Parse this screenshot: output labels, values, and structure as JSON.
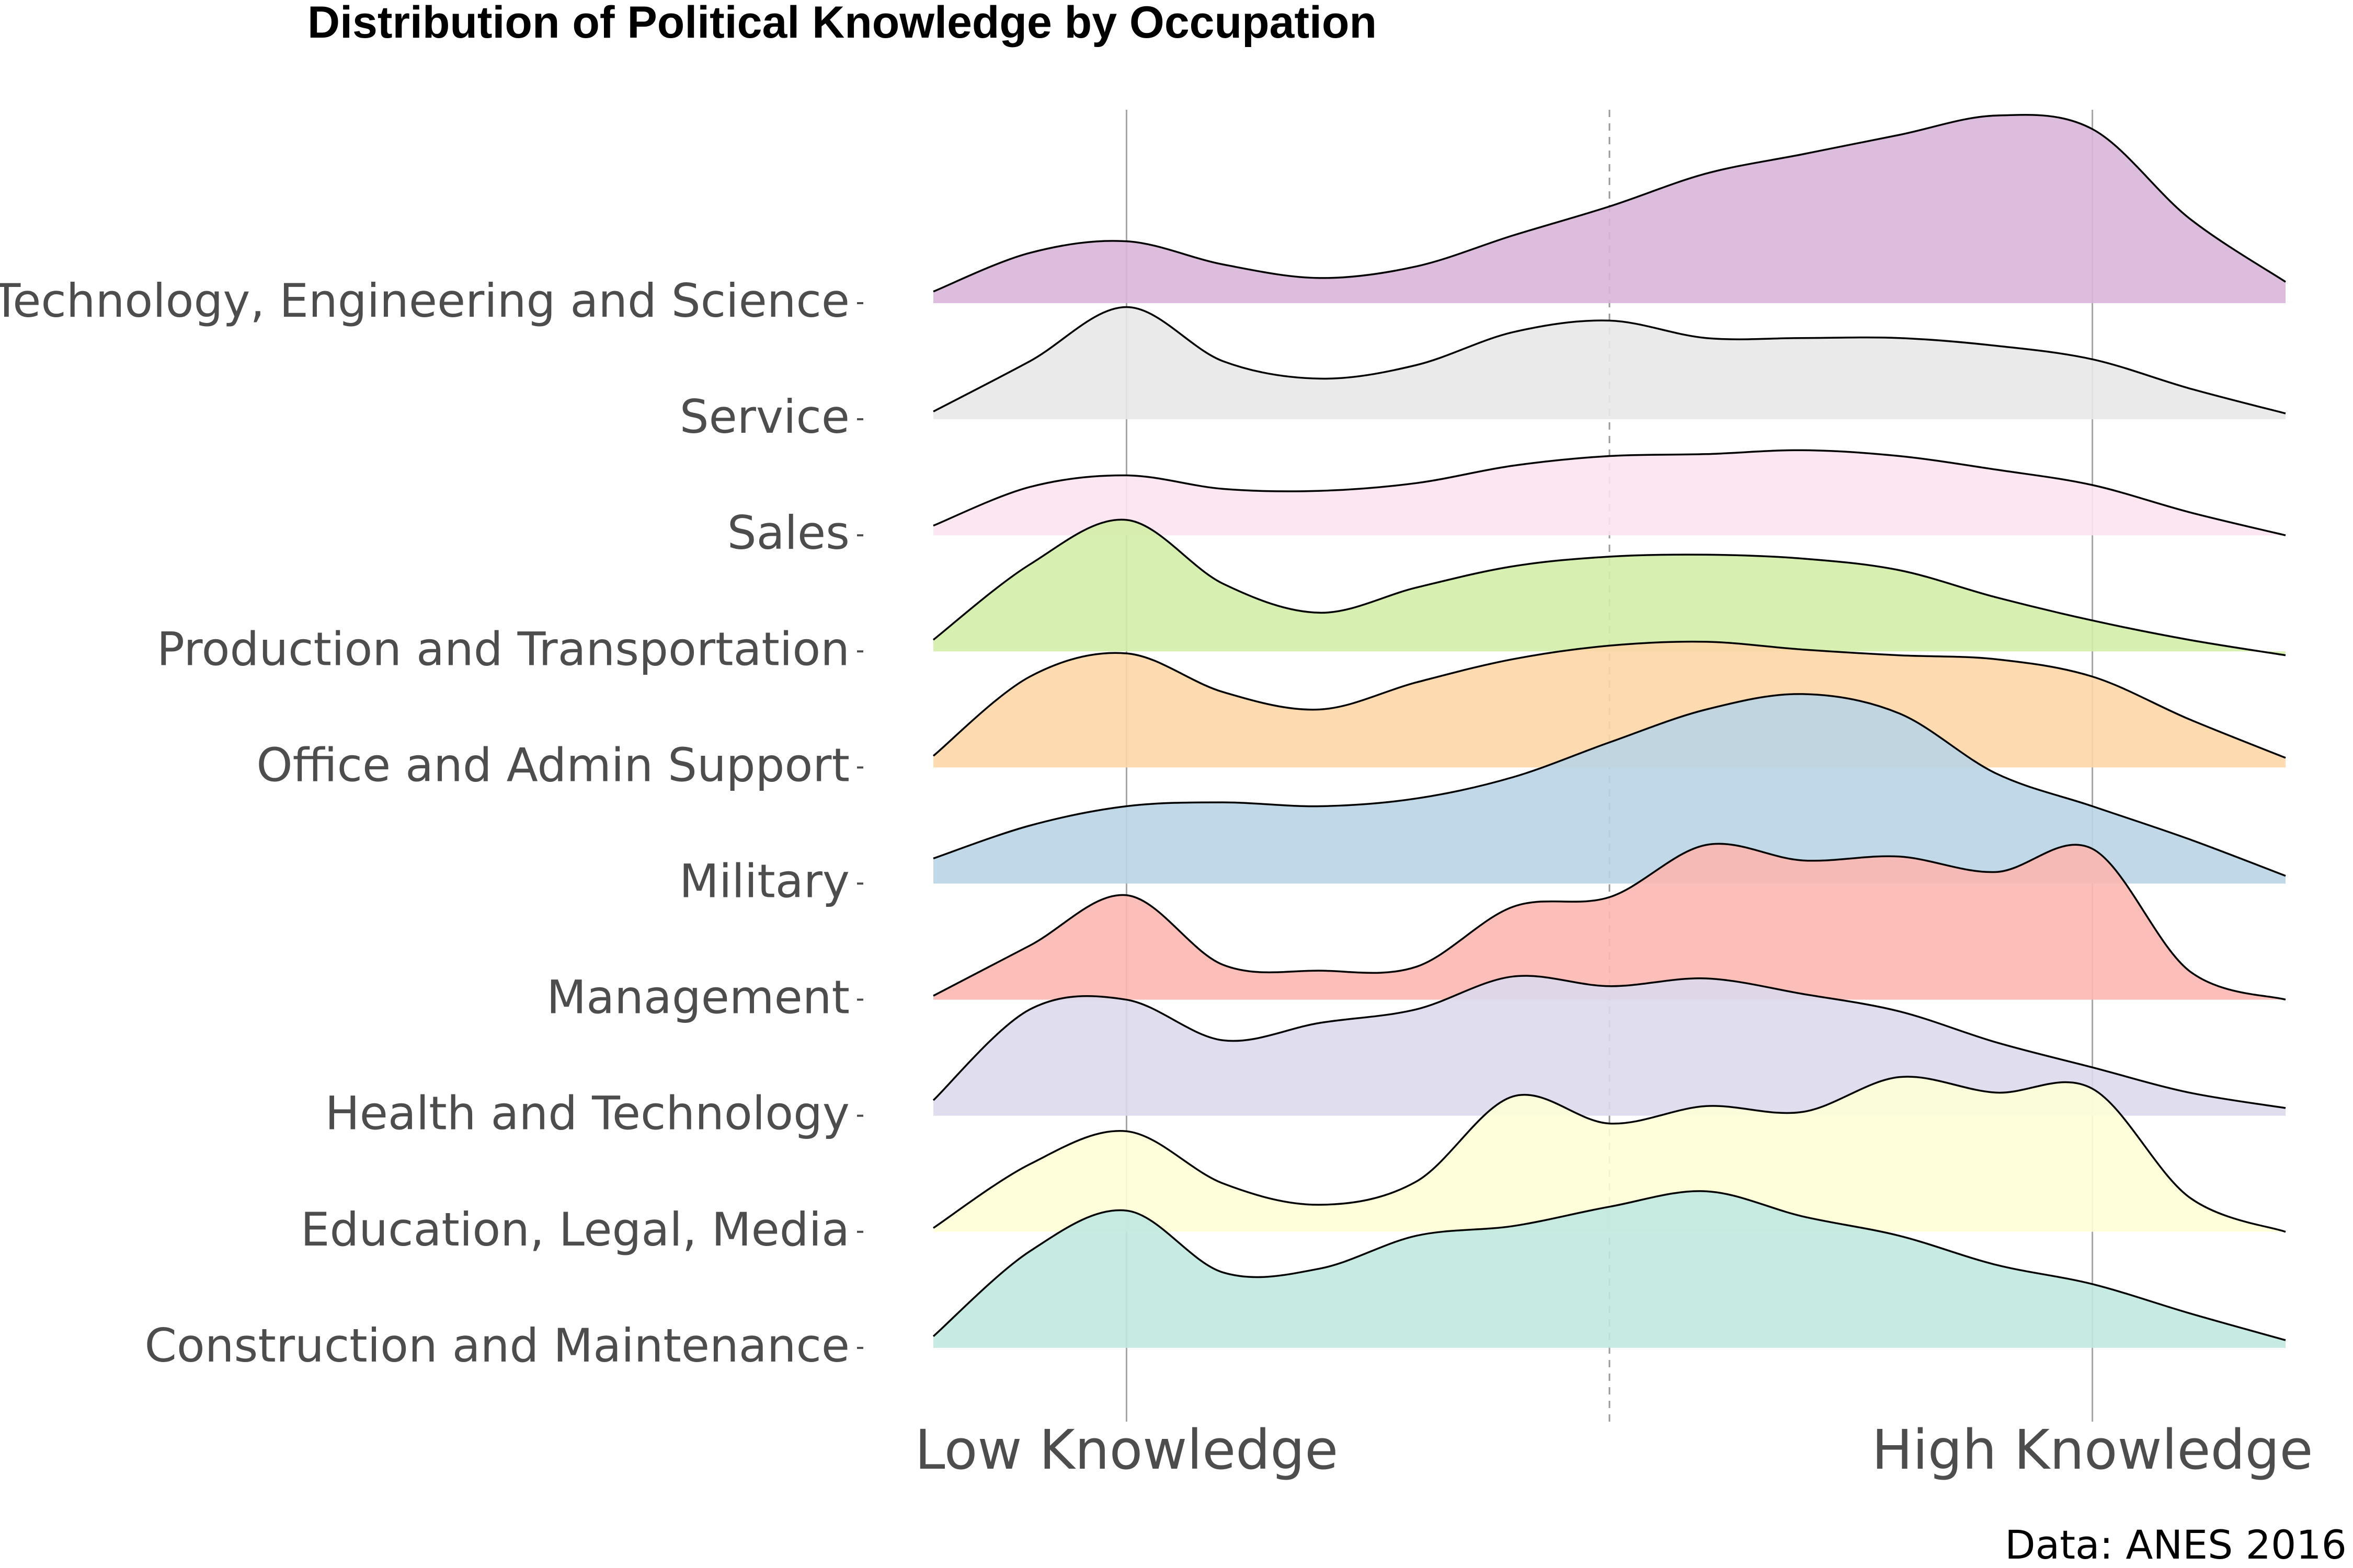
{
  "chart_data": {
    "type": "ridgeline",
    "title": "Distribution of Political Knowledge by Occupation",
    "caption": "Data: ANES 2016",
    "x_tick_labels": [
      "Low Knowledge",
      "High Knowledge"
    ],
    "x_tick_values": [
      0,
      5
    ],
    "xlim": [
      -1,
      6
    ],
    "reference_lines": [
      {
        "x": 0,
        "style": "solid"
      },
      {
        "x": 2.5,
        "style": "dashed"
      },
      {
        "x": 5,
        "style": "solid"
      }
    ],
    "grid": false,
    "legend": "none",
    "x_grid": [
      -1,
      -0.5,
      0,
      0.5,
      1,
      1.5,
      2,
      2.5,
      3,
      3.5,
      4,
      4.5,
      5,
      5.5,
      6
    ],
    "categories": [
      "Technology, Engineering and Science",
      "Service",
      "Sales",
      "Production and Transportation",
      "Office and Admin Support",
      "Military",
      "Management",
      "Health and Technology",
      "Education, Legal, Media",
      "Construction and Maintenance"
    ],
    "series": [
      {
        "name": "Technology, Engineering and Science",
        "color": "#d9b6d9",
        "density": [
          0.06,
          0.26,
          0.32,
          0.2,
          0.13,
          0.19,
          0.35,
          0.5,
          0.67,
          0.77,
          0.87,
          0.97,
          0.9,
          0.44,
          0.11
        ]
      },
      {
        "name": "Service",
        "color": "#e8e8e8",
        "density": [
          0.04,
          0.3,
          0.58,
          0.3,
          0.21,
          0.28,
          0.45,
          0.51,
          0.42,
          0.42,
          0.42,
          0.38,
          0.31,
          0.16,
          0.03
        ]
      },
      {
        "name": "Sales",
        "color": "#fce3f0",
        "density": [
          0.05,
          0.25,
          0.31,
          0.24,
          0.23,
          0.27,
          0.36,
          0.41,
          0.42,
          0.44,
          0.41,
          0.34,
          0.26,
          0.12,
          0.0
        ]
      },
      {
        "name": "Production and Transportation",
        "color": "#d3eda9",
        "density": [
          0.06,
          0.45,
          0.68,
          0.35,
          0.2,
          0.33,
          0.44,
          0.49,
          0.5,
          0.48,
          0.42,
          0.28,
          0.16,
          0.06,
          -0.02
        ]
      },
      {
        "name": "Office and Admin Support",
        "color": "#fed6a8",
        "density": [
          0.06,
          0.47,
          0.59,
          0.39,
          0.3,
          0.44,
          0.56,
          0.63,
          0.65,
          0.61,
          0.58,
          0.56,
          0.47,
          0.25,
          0.05
        ]
      },
      {
        "name": "Military",
        "color": "#b9d4e6",
        "density": [
          0.13,
          0.3,
          0.4,
          0.42,
          0.4,
          0.44,
          0.55,
          0.73,
          0.9,
          0.98,
          0.88,
          0.57,
          0.4,
          0.23,
          0.04
        ]
      },
      {
        "name": "Management",
        "color": "#fcb7b0",
        "density": [
          0.02,
          0.28,
          0.54,
          0.18,
          0.15,
          0.17,
          0.48,
          0.53,
          0.8,
          0.72,
          0.74,
          0.66,
          0.78,
          0.15,
          0.0
        ]
      },
      {
        "name": "Health and Technology",
        "color": "#dbd9ec",
        "density": [
          0.08,
          0.55,
          0.6,
          0.39,
          0.48,
          0.55,
          0.72,
          0.67,
          0.71,
          0.63,
          0.54,
          0.38,
          0.25,
          0.12,
          0.04
        ]
      },
      {
        "name": "Education, Legal, Media",
        "color": "#feffd6",
        "density": [
          0.02,
          0.35,
          0.52,
          0.25,
          0.14,
          0.26,
          0.7,
          0.56,
          0.65,
          0.62,
          0.8,
          0.72,
          0.74,
          0.18,
          0.0
        ]
      },
      {
        "name": "Construction and Maintenance",
        "color": "#c1e8e0",
        "density": [
          0.06,
          0.5,
          0.71,
          0.39,
          0.41,
          0.58,
          0.63,
          0.73,
          0.81,
          0.68,
          0.58,
          0.43,
          0.33,
          0.18,
          0.04
        ]
      }
    ]
  }
}
